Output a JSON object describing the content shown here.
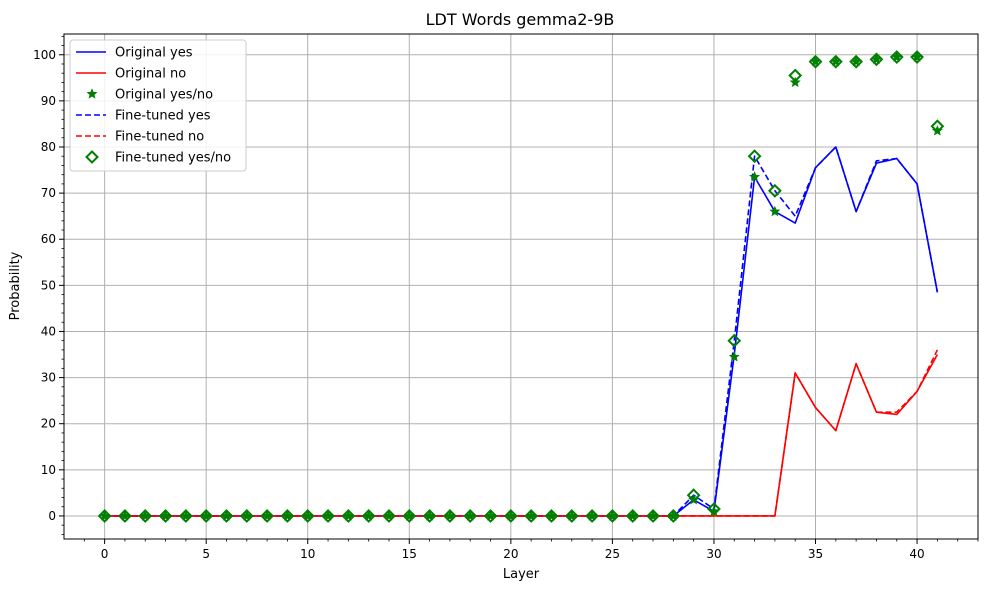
{
  "chart_data": {
    "type": "line",
    "title": "LDT Words gemma2-9B",
    "xlabel": "Layer",
    "ylabel": "Probability",
    "xlim": [
      -2,
      43
    ],
    "ylim": [
      -5,
      104.5
    ],
    "xticks": [
      0,
      5,
      10,
      15,
      20,
      25,
      30,
      35,
      40
    ],
    "yticks": [
      0,
      10,
      20,
      30,
      40,
      50,
      60,
      70,
      80,
      90,
      100
    ],
    "grid": true,
    "legend_position": "upper-left",
    "x": [
      0,
      1,
      2,
      3,
      4,
      5,
      6,
      7,
      8,
      9,
      10,
      11,
      12,
      13,
      14,
      15,
      16,
      17,
      18,
      19,
      20,
      21,
      22,
      23,
      24,
      25,
      26,
      27,
      28,
      29,
      30,
      31,
      32,
      33,
      34,
      35,
      36,
      37,
      38,
      39,
      40,
      41
    ],
    "series": [
      {
        "name": "Original yes",
        "style": "solid-line",
        "color": "#0000ff",
        "values": [
          0,
          0,
          0,
          0,
          0,
          0,
          0,
          0,
          0,
          0,
          0,
          0,
          0,
          0,
          0,
          0,
          0,
          0,
          0,
          0,
          0,
          0,
          0,
          0,
          0,
          0,
          0,
          0,
          0,
          3.5,
          1.0,
          35.0,
          73.5,
          66.0,
          63.5,
          75.5,
          80.0,
          66.0,
          76.5,
          77.5,
          72.0,
          48.5
        ]
      },
      {
        "name": "Original no",
        "style": "solid-line",
        "color": "#ff0000",
        "values": [
          0,
          0,
          0,
          0,
          0,
          0,
          0,
          0,
          0,
          0,
          0,
          0,
          0,
          0,
          0,
          0,
          0,
          0,
          0,
          0,
          0,
          0,
          0,
          0,
          0,
          0,
          0,
          0,
          0,
          0,
          0,
          0,
          0,
          0,
          31.0,
          23.5,
          18.5,
          33.0,
          22.5,
          22.0,
          27.0,
          35.0
        ]
      },
      {
        "name": "Original yes/no",
        "style": "star-marker",
        "color": "#008000",
        "values": [
          0,
          0,
          0,
          0,
          0,
          0,
          0,
          0,
          0,
          0,
          0,
          0,
          0,
          0,
          0,
          0,
          0,
          0,
          0,
          0,
          0,
          0,
          0,
          0,
          0,
          0,
          0,
          0,
          0,
          3.5,
          1.0,
          34.5,
          73.5,
          66.0,
          94.0,
          98.5,
          98.5,
          98.5,
          99.0,
          99.5,
          99.5,
          83.5
        ]
      },
      {
        "name": "Fine-tuned yes",
        "style": "dashed-line",
        "color": "#0000ff",
        "values": [
          0,
          0,
          0,
          0,
          0,
          0,
          0,
          0,
          0,
          0,
          0,
          0,
          0,
          0,
          0,
          0,
          0,
          0,
          0,
          0,
          0,
          0,
          0,
          0,
          0,
          0,
          0,
          0,
          0,
          4.5,
          1.5,
          38.0,
          78.0,
          70.5,
          65.0,
          75.5,
          80.0,
          66.0,
          77.0,
          77.5,
          72.0,
          48.5
        ]
      },
      {
        "name": "Fine-tuned no",
        "style": "dashed-line",
        "color": "#ff0000",
        "values": [
          0,
          0,
          0,
          0,
          0,
          0,
          0,
          0,
          0,
          0,
          0,
          0,
          0,
          0,
          0,
          0,
          0,
          0,
          0,
          0,
          0,
          0,
          0,
          0,
          0,
          0,
          0,
          0,
          0,
          0,
          0,
          0,
          0,
          0,
          31.0,
          23.5,
          18.5,
          33.0,
          22.5,
          22.5,
          27.0,
          36.0
        ]
      },
      {
        "name": "Fine-tuned yes/no",
        "style": "hollow-diamond-marker",
        "color": "#008000",
        "values": [
          0,
          0,
          0,
          0,
          0,
          0,
          0,
          0,
          0,
          0,
          0,
          0,
          0,
          0,
          0,
          0,
          0,
          0,
          0,
          0,
          0,
          0,
          0,
          0,
          0,
          0,
          0,
          0,
          0,
          4.5,
          1.5,
          38.0,
          78.0,
          70.5,
          95.5,
          98.5,
          98.5,
          98.5,
          99.0,
          99.5,
          99.5,
          84.5
        ]
      }
    ]
  }
}
